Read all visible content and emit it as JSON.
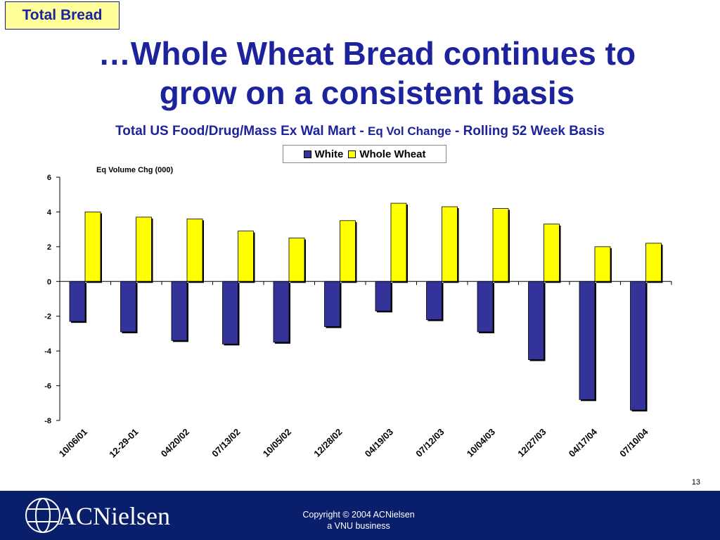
{
  "tag": "Total Bread",
  "title_line1": "…Whole Wheat Bread continues to",
  "title_line2": "grow on a consistent basis",
  "subtitle": {
    "part1": "Total US Food/Drug/Mass Ex Wal Mart - ",
    "part2": "Eq Vol Change",
    "part3": " - Rolling 52 Week Basis"
  },
  "legend": {
    "white": "White",
    "whole_wheat": "Whole Wheat"
  },
  "colors": {
    "white": "#333399",
    "whole_wheat": "#ffff00",
    "brand_blue": "#1c239c",
    "footer": "#0a1f6b"
  },
  "chart_data": {
    "type": "bar",
    "title": "",
    "ylabel": "Eq Volume Chg (000)",
    "xlabel": "",
    "categories": [
      "10/06/01",
      "12-29-01",
      "04/20/02",
      "07/13/02",
      "10/05/02",
      "12/28/02",
      "04/19/03",
      "07/12/03",
      "10/04/03",
      "12/27/03",
      "04/17/04",
      "07/10/04"
    ],
    "series": [
      {
        "name": "White",
        "values": [
          -2.3,
          -2.9,
          -3.4,
          -3.6,
          -3.5,
          -2.6,
          -1.7,
          -2.2,
          -2.9,
          -4.5,
          -6.8,
          -7.4
        ]
      },
      {
        "name": "Whole Wheat",
        "values": [
          4.0,
          3.7,
          3.6,
          2.9,
          2.5,
          3.5,
          4.5,
          4.3,
          4.2,
          3.3,
          2.0,
          2.2
        ]
      }
    ],
    "ylim": [
      -8,
      6
    ],
    "yticks": [
      6,
      4,
      2,
      0,
      -2,
      -4,
      -6,
      -8
    ],
    "grid": false,
    "legend": "top-center"
  },
  "page_number": "13",
  "copyright_line1": "Copyright © 2004 ACNielsen",
  "copyright_line2": "a VNU business",
  "logo": {
    "text": "ACNielsen",
    "icon": "globe-icon"
  }
}
